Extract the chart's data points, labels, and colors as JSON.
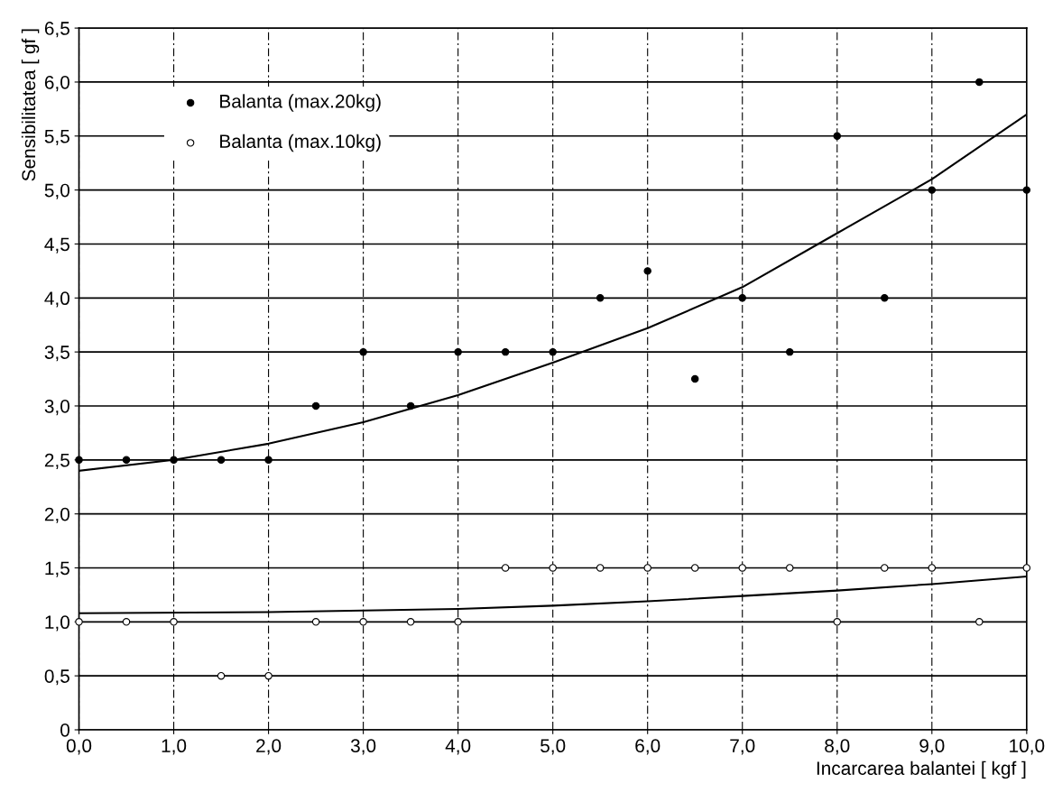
{
  "chart_data": {
    "type": "scatter",
    "xlabel": "Incarcarea balantei [ kgf ]",
    "ylabel": "Sensibilitatea [ gf ]",
    "x": [
      0,
      0.5,
      1,
      1.5,
      2,
      2.5,
      3,
      3.5,
      4,
      4.5,
      5,
      5.5,
      6,
      6.5,
      7,
      7.5,
      8,
      8.5,
      9,
      9.5,
      10
    ],
    "series": [
      {
        "name": "Balanta (max.20kg)",
        "color": "#000000",
        "marker": "circle",
        "values": [
          2.5,
          2.5,
          2.5,
          2.5,
          2.5,
          3.0,
          3.5,
          3.0,
          3.5,
          3.5,
          3.5,
          4.0,
          4.25,
          3.25,
          4.0,
          3.5,
          5.5,
          4.0,
          5.0,
          6.0,
          5.0
        ]
      },
      {
        "name": "Balanta (max.10kg)",
        "color": "#ffffff",
        "marker": "circle",
        "values": [
          1.0,
          1.0,
          1.0,
          0.5,
          0.5,
          1.0,
          1.0,
          1.0,
          1.0,
          1.5,
          1.5,
          1.5,
          1.5,
          1.5,
          1.5,
          1.5,
          1.0,
          1.5,
          1.5,
          1.0,
          1.5
        ]
      },
      {
        "type": "line",
        "color": "#000000",
        "marker": "none",
        "x": [
          0,
          1,
          2,
          3,
          4,
          5,
          6,
          7,
          8,
          9,
          10
        ],
        "values": [
          2.4,
          2.5,
          2.65,
          2.85,
          3.1,
          3.4,
          3.72,
          4.1,
          4.6,
          5.1,
          5.7
        ]
      },
      {
        "type": "line",
        "color": "#000000",
        "marker": "none",
        "x": [
          0,
          2,
          4,
          5,
          6,
          7,
          8,
          9,
          10
        ],
        "values": [
          1.08,
          1.09,
          1.12,
          1.15,
          1.19,
          1.24,
          1.29,
          1.35,
          1.42
        ]
      }
    ],
    "xlim": [
      0,
      10
    ],
    "ylim": [
      0,
      6.5
    ],
    "xticks": [
      {
        "value": 0,
        "label": "0,0"
      },
      {
        "value": 1,
        "label": "1,0"
      },
      {
        "value": 2,
        "label": "2,0"
      },
      {
        "value": 3,
        "label": "3,0"
      },
      {
        "value": 4,
        "label": "4,0"
      },
      {
        "value": 5,
        "label": "5,0"
      },
      {
        "value": 6,
        "label": "6,0"
      },
      {
        "value": 7,
        "label": "7,0"
      },
      {
        "value": 8,
        "label": "8,0"
      },
      {
        "value": 9,
        "label": "9,0"
      },
      {
        "value": 10,
        "label": "10,0"
      }
    ],
    "yticks": [
      0,
      {
        "value": 0.5,
        "label": "0,5"
      },
      {
        "value": 1,
        "label": "1,0"
      },
      {
        "value": 1.5,
        "label": "1,5"
      },
      {
        "value": 2,
        "label": "2,0"
      },
      {
        "value": 2.5,
        "label": "2,5"
      },
      {
        "value": 3,
        "label": "3,0"
      },
      {
        "value": 3.5,
        "label": "3,5"
      },
      {
        "value": 4,
        "label": "4,0"
      },
      {
        "value": 4.5,
        "label": "4,5"
      },
      {
        "value": 5,
        "label": "5,0"
      },
      {
        "value": 5.5,
        "label": "5,5"
      },
      {
        "value": 6,
        "label": "6,0"
      },
      {
        "value": 6.5,
        "label": "6,5"
      }
    ],
    "grid": true,
    "legend": "top left"
  }
}
